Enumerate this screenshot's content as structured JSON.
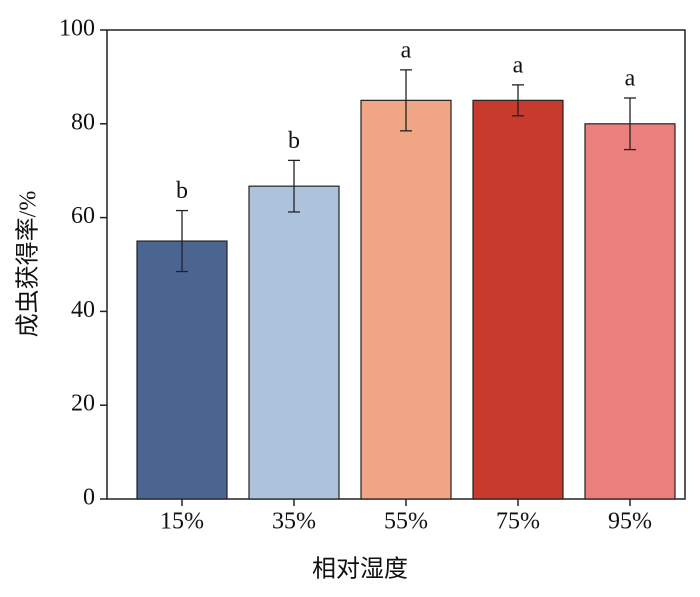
{
  "chart_data": {
    "type": "bar",
    "ylabel": "成虫获得率/%",
    "xlabel": "相对湿度",
    "categories": [
      "15%",
      "35%",
      "55%",
      "75%",
      "95%"
    ],
    "values": [
      55,
      66.7,
      85,
      85,
      80
    ],
    "errors": [
      6.5,
      5.5,
      6.5,
      3.3,
      5.5
    ],
    "annotations": [
      "b",
      "b",
      "a",
      "a",
      "a"
    ],
    "colors": [
      "#4a6590",
      "#adc3dc",
      "#f0a584",
      "#c8392e",
      "#eb7f7d"
    ],
    "ylim": [
      0,
      100
    ],
    "yticks": [
      0,
      20,
      40,
      60,
      80,
      100
    ],
    "grid": false
  }
}
